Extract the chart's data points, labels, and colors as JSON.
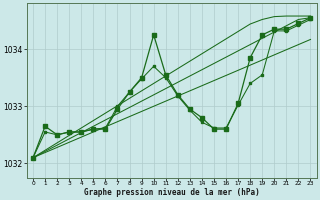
{
  "xlabel": "Graphe pression niveau de la mer (hPa)",
  "bg_color": "#cce8e8",
  "grid_color": "#b0cccc",
  "line_color": "#1a6b1a",
  "ylim": [
    1031.75,
    1034.8
  ],
  "xlim": [
    -0.5,
    23.5
  ],
  "yticks": [
    1032,
    1033,
    1034
  ],
  "xticks": [
    0,
    1,
    2,
    3,
    4,
    5,
    6,
    7,
    8,
    9,
    10,
    11,
    12,
    13,
    14,
    15,
    16,
    17,
    18,
    19,
    20,
    21,
    22,
    23
  ],
  "main_series": [
    1032.1,
    1032.65,
    1032.5,
    1032.55,
    1032.55,
    1032.6,
    1032.6,
    1032.95,
    1033.25,
    1033.5,
    1034.25,
    1033.55,
    1033.2,
    1032.95,
    1032.8,
    1032.6,
    1032.6,
    1033.05,
    1033.85,
    1034.25,
    1034.35,
    1034.35,
    1034.45,
    1034.55
  ],
  "series2": [
    1032.1,
    1032.55,
    1032.5,
    1032.55,
    1032.55,
    1032.6,
    1032.62,
    1033.0,
    1033.25,
    1033.48,
    1033.7,
    1033.5,
    1033.18,
    1032.93,
    1032.72,
    1032.62,
    1032.62,
    1033.02,
    1033.4,
    1033.55,
    1034.32,
    1034.32,
    1034.42,
    1034.52
  ],
  "trend1": [
    1032.1,
    1032.23,
    1032.36,
    1032.49,
    1032.62,
    1032.75,
    1032.88,
    1033.01,
    1033.14,
    1033.27,
    1033.4,
    1033.53,
    1033.66,
    1033.79,
    1033.92,
    1034.05,
    1034.18,
    1034.31,
    1034.44,
    1034.52,
    1034.57,
    1034.58,
    1034.58,
    1034.58
  ],
  "trend2": [
    1032.1,
    1032.21,
    1032.32,
    1032.43,
    1032.54,
    1032.65,
    1032.76,
    1032.87,
    1032.98,
    1033.09,
    1033.2,
    1033.31,
    1033.42,
    1033.53,
    1033.64,
    1033.75,
    1033.86,
    1033.97,
    1034.08,
    1034.19,
    1034.3,
    1034.41,
    1034.52,
    1034.55
  ],
  "trend3": [
    1032.1,
    1032.19,
    1032.28,
    1032.37,
    1032.46,
    1032.55,
    1032.64,
    1032.73,
    1032.82,
    1032.91,
    1033.0,
    1033.09,
    1033.18,
    1033.27,
    1033.36,
    1033.45,
    1033.54,
    1033.63,
    1033.72,
    1033.81,
    1033.9,
    1033.99,
    1034.08,
    1034.17
  ]
}
